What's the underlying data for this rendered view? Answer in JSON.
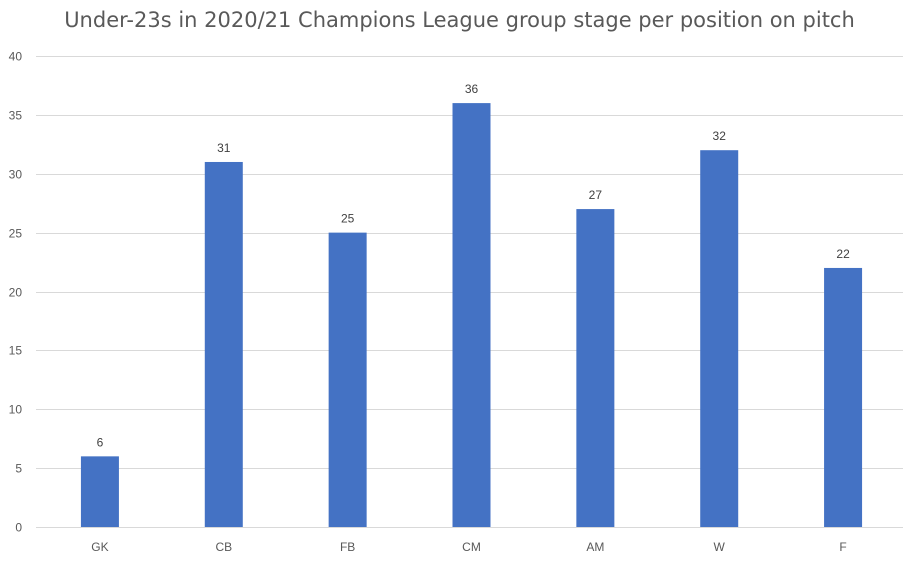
{
  "chart_data": {
    "type": "bar",
    "title": "Under-23s in 2020/21 Champions League group stage per position on pitch",
    "xlabel": "",
    "ylabel": "",
    "categories": [
      "GK",
      "CB",
      "FB",
      "CM",
      "AM",
      "W",
      "F"
    ],
    "values": [
      6,
      31,
      25,
      36,
      27,
      32,
      22
    ],
    "ylim": [
      0,
      40
    ],
    "yticks": [
      0,
      5,
      10,
      15,
      20,
      25,
      30,
      35,
      40
    ],
    "grid": true,
    "legend": "none",
    "data_labels": true,
    "colors": {
      "bar": "#4472C4",
      "grid": "#D9D9D9",
      "text": "#595959"
    }
  }
}
